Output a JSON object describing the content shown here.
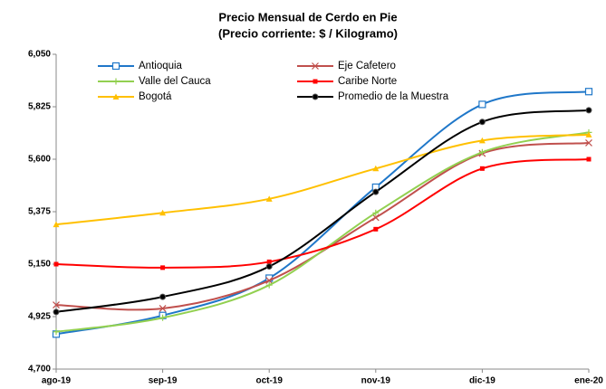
{
  "chart_data": {
    "type": "line",
    "title": "Precio Mensual de Cerdo en Pie",
    "subtitle": "(Precio corriente: $ / Kilogramo)",
    "categories": [
      "ago-19",
      "sep-19",
      "oct-19",
      "nov-19",
      "dic-19",
      "ene-20"
    ],
    "series": [
      {
        "name": "Antioquia",
        "color": "#1f77c9",
        "marker": "square-open",
        "values": [
          4850,
          4930,
          5090,
          5480,
          5835,
          5890
        ]
      },
      {
        "name": "Eje Cafetero",
        "color": "#c0504d",
        "marker": "x",
        "values": [
          4975,
          4960,
          5080,
          5350,
          5625,
          5670
        ]
      },
      {
        "name": "Valle del Cauca",
        "color": "#92d050",
        "marker": "plus",
        "values": [
          4860,
          4920,
          5060,
          5370,
          5630,
          5715
        ]
      },
      {
        "name": "Caribe Norte",
        "color": "#ff0000",
        "marker": "square",
        "values": [
          5150,
          5135,
          5160,
          5300,
          5560,
          5600
        ]
      },
      {
        "name": "Bogotá",
        "color": "#ffc000",
        "marker": "triangle",
        "values": [
          5320,
          5370,
          5430,
          5560,
          5680,
          5705
        ]
      },
      {
        "name": "Promedio de la Muestra",
        "color": "#000000",
        "marker": "circle",
        "values": [
          4945,
          5010,
          5140,
          5460,
          5760,
          5810
        ]
      }
    ],
    "ylim": [
      4700,
      6050
    ],
    "yticks": [
      {
        "value": 4700,
        "label": "4,700"
      },
      {
        "value": 4925,
        "label": "4,925"
      },
      {
        "value": 5150,
        "label": "5,150"
      },
      {
        "value": 5375,
        "label": "5,375"
      },
      {
        "value": 5600,
        "label": "5,600"
      },
      {
        "value": 5825,
        "label": "5,825"
      },
      {
        "value": 6050,
        "label": "6,050"
      }
    ],
    "grid": false,
    "smooth": true
  }
}
